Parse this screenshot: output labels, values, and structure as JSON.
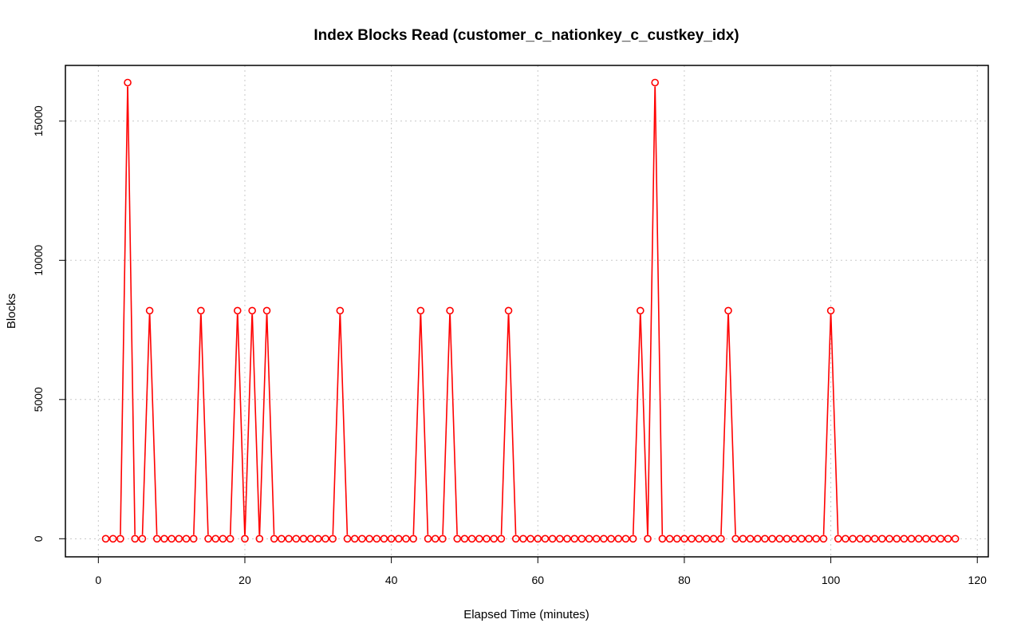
{
  "chart_data": {
    "type": "line",
    "title": "Index Blocks Read (customer_c_nationkey_c_custkey_idx)",
    "xlabel": "Elapsed Time (minutes)",
    "ylabel": "Blocks",
    "xlim": [
      -4.5,
      121.5
    ],
    "ylim": [
      -650,
      17000
    ],
    "xticks": [
      0,
      20,
      40,
      60,
      80,
      100,
      120
    ],
    "yticks": [
      0,
      5000,
      10000,
      15000
    ],
    "grid": true,
    "marker": "open-circle",
    "color": "#ff0000",
    "x_start": 1,
    "x_end": 117,
    "baseline": 0,
    "peaks": [
      {
        "x": 4,
        "y": 16384
      },
      {
        "x": 7,
        "y": 8192
      },
      {
        "x": 14,
        "y": 8192
      },
      {
        "x": 19,
        "y": 8192
      },
      {
        "x": 21,
        "y": 8192
      },
      {
        "x": 23,
        "y": 8192
      },
      {
        "x": 33,
        "y": 8192
      },
      {
        "x": 44,
        "y": 8192
      },
      {
        "x": 48,
        "y": 8192
      },
      {
        "x": 56,
        "y": 8192
      },
      {
        "x": 74,
        "y": 8192
      },
      {
        "x": 76,
        "y": 16384
      },
      {
        "x": 86,
        "y": 8192
      },
      {
        "x": 100,
        "y": 8192
      }
    ]
  }
}
